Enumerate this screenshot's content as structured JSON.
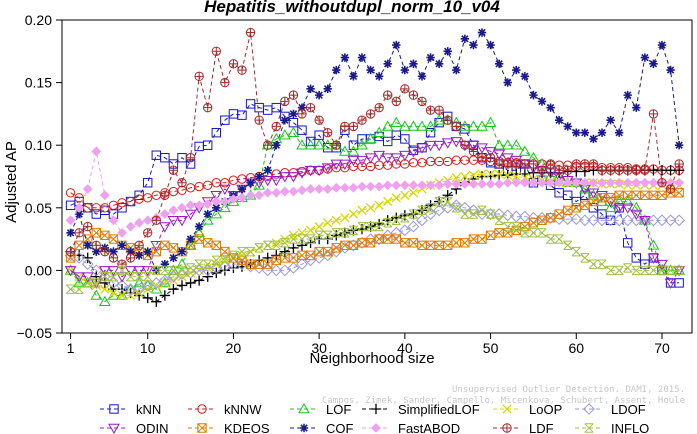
{
  "chart_data": {
    "type": "line",
    "title": "Hepatitis_withoutdupl_norm_10_v04",
    "xlabel": "Neighborhood size",
    "ylabel": "Adjusted AP",
    "xlim": [
      0,
      73.5
    ],
    "ylim": [
      -0.05,
      0.2
    ],
    "xticks": [
      1,
      10,
      20,
      30,
      40,
      50,
      60,
      70
    ],
    "yticks": [
      -0.05,
      0.0,
      0.05,
      0.1,
      0.15,
      0.2
    ],
    "ytick_labels": [
      "−0.05",
      "0.00",
      "0.05",
      "0.10",
      "0.15",
      "0.20"
    ],
    "grid": false,
    "legend_position": "bottom",
    "series": [
      {
        "name": "kNN",
        "color": "#1515c8",
        "marker": "square",
        "x_start": 1,
        "values": [
          0.052,
          0.055,
          0.05,
          0.045,
          0.048,
          0.045,
          0.05,
          0.055,
          0.06,
          0.07,
          0.092,
          0.09,
          0.085,
          0.09,
          0.085,
          0.099,
          0.1,
          0.11,
          0.12,
          0.125,
          0.124,
          0.133,
          0.13,
          0.128,
          0.13,
          0.123,
          0.118,
          0.112,
          0.103,
          0.108,
          0.098,
          0.098,
          0.112,
          0.1,
          0.105,
          0.105,
          0.107,
          0.103,
          0.108,
          0.105,
          0.096,
          0.098,
          0.11,
          0.118,
          0.123,
          0.115,
          0.113,
          0.1,
          0.09,
          0.086,
          0.085,
          0.08,
          0.08,
          0.085,
          0.07,
          0.072,
          0.068,
          0.062,
          0.06,
          0.055,
          0.06,
          0.05,
          0.045,
          0.04,
          0.05,
          0.022,
          0.01,
          0.005,
          0.01,
          0.0,
          -0.01,
          -0.01
        ]
      },
      {
        "name": "kNNW",
        "color": "#d81b1b",
        "marker": "circle",
        "x_start": 1,
        "values": [
          0.062,
          0.058,
          0.05,
          0.05,
          0.05,
          0.052,
          0.054,
          0.055,
          0.057,
          0.058,
          0.06,
          0.062,
          0.063,
          0.064,
          0.066,
          0.067,
          0.068,
          0.07,
          0.07,
          0.072,
          0.073,
          0.074,
          0.075,
          0.076,
          0.077,
          0.078,
          0.078,
          0.079,
          0.08,
          0.08,
          0.081,
          0.082,
          0.082,
          0.083,
          0.083,
          0.083,
          0.084,
          0.084,
          0.085,
          0.085,
          0.086,
          0.086,
          0.087,
          0.087,
          0.087,
          0.088,
          0.088,
          0.088,
          0.088,
          0.087,
          0.087,
          0.086,
          0.086,
          0.085,
          0.085,
          0.085,
          0.084,
          0.084,
          0.084,
          0.083,
          0.083,
          0.083,
          0.082,
          0.082,
          0.082,
          0.082,
          0.081,
          0.081,
          0.081,
          0.08,
          0.08,
          0.08
        ]
      },
      {
        "name": "LOF",
        "color": "#18c818",
        "marker": "triangle-up",
        "x_start": 1,
        "values": [
          0.0,
          -0.01,
          -0.01,
          -0.02,
          -0.025,
          -0.02,
          -0.02,
          -0.015,
          -0.01,
          -0.012,
          -0.015,
          -0.01,
          0.0,
          0.005,
          0.02,
          0.03,
          0.04,
          0.045,
          0.05,
          0.055,
          0.058,
          0.06,
          0.068,
          0.1,
          0.105,
          0.108,
          0.11,
          0.1,
          0.1,
          0.1,
          0.1,
          0.1,
          0.095,
          0.095,
          0.1,
          0.105,
          0.11,
          0.115,
          0.118,
          0.115,
          0.115,
          0.115,
          0.115,
          0.12,
          0.12,
          0.118,
          0.115,
          0.115,
          0.115,
          0.118,
          0.1,
          0.1,
          0.1,
          0.095,
          0.09,
          0.085,
          0.075,
          0.075,
          0.07,
          0.07,
          0.065,
          0.06,
          0.055,
          0.05,
          0.055,
          0.055,
          0.05,
          0.04,
          0.02,
          0.0,
          0.0,
          0.0
        ]
      },
      {
        "name": "SimplifiedLOF",
        "color": "#000000",
        "marker": "plus",
        "x_start": 1,
        "values": [
          0.015,
          0.012,
          0.01,
          -0.005,
          -0.01,
          -0.015,
          -0.015,
          -0.018,
          -0.02,
          -0.022,
          -0.025,
          -0.02,
          -0.015,
          -0.012,
          -0.01,
          -0.008,
          -0.005,
          -0.002,
          0.0,
          0.002,
          0.003,
          0.005,
          0.008,
          0.01,
          0.012,
          0.015,
          0.018,
          0.02,
          0.022,
          0.025,
          0.025,
          0.028,
          0.03,
          0.032,
          0.033,
          0.035,
          0.037,
          0.04,
          0.042,
          0.044,
          0.045,
          0.048,
          0.052,
          0.055,
          0.06,
          0.065,
          0.07,
          0.073,
          0.075,
          0.075,
          0.076,
          0.076,
          0.077,
          0.077,
          0.078,
          0.078,
          0.078,
          0.078,
          0.079,
          0.079,
          0.079,
          0.08,
          0.08,
          0.08,
          0.08,
          0.08,
          0.08,
          0.08,
          0.08,
          0.08,
          0.08,
          0.08
        ]
      },
      {
        "name": "LoOP",
        "color": "#d8d800",
        "marker": "x",
        "x_start": 1,
        "values": [
          0.0,
          -0.005,
          -0.01,
          -0.012,
          -0.015,
          -0.018,
          -0.02,
          -0.02,
          -0.018,
          -0.015,
          -0.012,
          -0.01,
          -0.008,
          -0.005,
          -0.002,
          0.0,
          0.002,
          0.005,
          0.008,
          0.01,
          0.012,
          0.015,
          0.018,
          0.02,
          0.022,
          0.025,
          0.028,
          0.03,
          0.032,
          0.035,
          0.038,
          0.04,
          0.042,
          0.045,
          0.048,
          0.05,
          0.052,
          0.055,
          0.058,
          0.06,
          0.062,
          0.065,
          0.068,
          0.07,
          0.072,
          0.074,
          0.075,
          0.076,
          0.077,
          0.077,
          0.077,
          0.076,
          0.075,
          0.074,
          0.073,
          0.072,
          0.071,
          0.07,
          0.07,
          0.07,
          0.07,
          0.07,
          0.069,
          0.069,
          0.069,
          0.068,
          0.068,
          0.068,
          0.068,
          0.068,
          0.068,
          0.068
        ]
      },
      {
        "name": "LDOF",
        "color": "#9b9bd8",
        "marker": "diamond",
        "x_start": 1,
        "values": [
          0.012,
          0.01,
          0.005,
          0.0,
          -0.005,
          -0.01,
          -0.012,
          -0.015,
          -0.015,
          -0.012,
          -0.01,
          -0.008,
          -0.005,
          -0.003,
          -0.002,
          0.0,
          0.0,
          0.002,
          0.003,
          0.005,
          0.005,
          0.003,
          0.002,
          0.0,
          0.0,
          0.0,
          0.002,
          0.005,
          0.008,
          0.01,
          0.012,
          0.015,
          0.018,
          0.02,
          0.022,
          0.025,
          0.025,
          0.028,
          0.03,
          0.032,
          0.035,
          0.04,
          0.045,
          0.048,
          0.05,
          0.052,
          0.05,
          0.048,
          0.045,
          0.045,
          0.045,
          0.044,
          0.043,
          0.043,
          0.042,
          0.042,
          0.042,
          0.041,
          0.041,
          0.041,
          0.04,
          0.04,
          0.04,
          0.04,
          0.04,
          0.04,
          0.04,
          0.04,
          0.04,
          0.04,
          0.04,
          0.04
        ]
      },
      {
        "name": "ODIN",
        "color": "#9a18c8",
        "marker": "triangle-down",
        "x_start": 1,
        "values": [
          0.0,
          -0.005,
          -0.005,
          -0.01,
          0.0,
          0.0,
          -0.005,
          0.0,
          0.0,
          0.0,
          0.02,
          0.035,
          0.04,
          0.04,
          0.045,
          0.05,
          0.055,
          0.06,
          0.065,
          0.06,
          0.065,
          0.07,
          0.07,
          0.072,
          0.072,
          0.075,
          0.075,
          0.078,
          0.08,
          0.08,
          0.082,
          0.085,
          0.085,
          0.088,
          0.088,
          0.09,
          0.092,
          0.09,
          0.09,
          0.092,
          0.095,
          0.098,
          0.1,
          0.1,
          0.102,
          0.103,
          0.1,
          0.1,
          0.098,
          0.095,
          0.093,
          0.09,
          0.088,
          0.085,
          0.082,
          0.08,
          0.078,
          0.075,
          0.072,
          0.07,
          0.065,
          0.062,
          0.06,
          0.055,
          0.05,
          0.05,
          0.045,
          0.04,
          0.01,
          0.005,
          -0.01,
          0.0
        ]
      },
      {
        "name": "KDEOS",
        "color": "#e07b00",
        "marker": "square-x",
        "x_start": 1,
        "values": [
          0.01,
          0.02,
          0.025,
          0.03,
          0.028,
          0.025,
          0.02,
          0.018,
          0.015,
          0.012,
          0.015,
          0.02,
          0.018,
          0.015,
          0.02,
          0.025,
          0.022,
          0.02,
          0.015,
          0.01,
          0.008,
          0.005,
          0.005,
          0.005,
          0.008,
          0.01,
          0.01,
          0.012,
          0.012,
          0.015,
          0.015,
          0.018,
          0.02,
          0.02,
          0.022,
          0.022,
          0.025,
          0.025,
          0.025,
          0.022,
          0.022,
          0.02,
          0.02,
          0.02,
          0.02,
          0.022,
          0.022,
          0.025,
          0.025,
          0.028,
          0.03,
          0.03,
          0.032,
          0.035,
          0.038,
          0.04,
          0.042,
          0.045,
          0.048,
          0.05,
          0.052,
          0.055,
          0.058,
          0.058,
          0.06,
          0.06,
          0.06,
          0.06,
          0.06,
          0.06,
          0.062,
          0.062
        ]
      },
      {
        "name": "COF",
        "color": "#1a1a8c",
        "marker": "star",
        "x_start": 1,
        "values": [
          0.03,
          0.045,
          0.02,
          0.015,
          0.018,
          0.015,
          0.02,
          0.015,
          0.012,
          0.015,
          0.0,
          0.005,
          0.01,
          0.015,
          0.025,
          0.035,
          0.045,
          0.05,
          0.055,
          0.06,
          0.065,
          0.07,
          0.075,
          0.08,
          0.1,
          0.12,
          0.125,
          0.13,
          0.145,
          0.14,
          0.145,
          0.16,
          0.17,
          0.155,
          0.17,
          0.16,
          0.155,
          0.165,
          0.18,
          0.16,
          0.165,
          0.155,
          0.17,
          0.165,
          0.175,
          0.16,
          0.185,
          0.18,
          0.19,
          0.18,
          0.165,
          0.15,
          0.16,
          0.155,
          0.14,
          0.135,
          0.13,
          0.12,
          0.115,
          0.11,
          0.11,
          0.105,
          0.11,
          0.12,
          0.11,
          0.14,
          0.13,
          0.17,
          0.165,
          0.18,
          0.16,
          0.1
        ]
      },
      {
        "name": "FastABOD",
        "color": "#f0a0f0",
        "marker": "diamond-small",
        "x_start": 1,
        "values": [
          0.04,
          0.05,
          0.065,
          0.095,
          0.06,
          0.04,
          0.03,
          0.035,
          0.038,
          0.04,
          0.042,
          0.045,
          0.048,
          0.05,
          0.052,
          0.052,
          0.053,
          0.055,
          0.055,
          0.057,
          0.058,
          0.06,
          0.06,
          0.062,
          0.062,
          0.063,
          0.063,
          0.064,
          0.065,
          0.065,
          0.065,
          0.066,
          0.066,
          0.066,
          0.067,
          0.067,
          0.067,
          0.068,
          0.068,
          0.068,
          0.068,
          0.068,
          0.068,
          0.068,
          0.069,
          0.069,
          0.069,
          0.069,
          0.069,
          0.069,
          0.069,
          0.07,
          0.07,
          0.07,
          0.07,
          0.07,
          0.07,
          0.07,
          0.07,
          0.07,
          0.07,
          0.07,
          0.07,
          0.07,
          0.07,
          0.07,
          0.07,
          0.07,
          0.07,
          0.07,
          0.07,
          0.07
        ]
      },
      {
        "name": "LDF",
        "color": "#a52a2a",
        "marker": "circle-plus",
        "x_start": 1,
        "values": [
          0.015,
          0.03,
          0.035,
          0.02,
          0.015,
          0.01,
          0.005,
          0.01,
          0.02,
          0.03,
          0.04,
          0.06,
          0.08,
          0.07,
          0.09,
          0.155,
          0.13,
          0.175,
          0.15,
          0.165,
          0.16,
          0.19,
          0.12,
          0.1,
          0.115,
          0.135,
          0.14,
          0.125,
          0.13,
          0.12,
          0.11,
          0.1,
          0.115,
          0.115,
          0.12,
          0.125,
          0.13,
          0.14,
          0.135,
          0.145,
          0.14,
          0.135,
          0.128,
          0.128,
          0.12,
          0.115,
          0.1,
          0.095,
          0.09,
          0.09,
          0.085,
          0.085,
          0.085,
          0.085,
          0.085,
          0.08,
          0.085,
          0.08,
          0.08,
          0.085,
          0.085,
          0.085,
          0.08,
          0.08,
          0.08,
          0.08,
          0.08,
          0.08,
          0.125,
          0.07,
          0.065,
          0.085
        ]
      },
      {
        "name": "INFLO",
        "color": "#a0c040",
        "marker": "asterisk-box",
        "x_start": 1,
        "values": [
          -0.015,
          -0.015,
          -0.01,
          -0.01,
          -0.005,
          -0.005,
          0.0,
          -0.005,
          -0.005,
          -0.005,
          0.0,
          0.0,
          0.0,
          0.0,
          0.002,
          0.005,
          0.005,
          0.008,
          0.01,
          0.012,
          0.015,
          0.015,
          0.018,
          0.02,
          0.02,
          0.022,
          0.025,
          0.025,
          0.025,
          0.028,
          0.028,
          0.03,
          0.03,
          0.032,
          0.035,
          0.035,
          0.035,
          0.038,
          0.04,
          0.042,
          0.045,
          0.048,
          0.05,
          0.055,
          0.055,
          0.05,
          0.045,
          0.045,
          0.048,
          0.045,
          0.04,
          0.035,
          0.035,
          0.03,
          0.03,
          0.03,
          0.025,
          0.025,
          0.02,
          0.015,
          0.01,
          0.005,
          0.005,
          0.0,
          0.0,
          0.002,
          0.0,
          0.0,
          0.0,
          0.0,
          0.0,
          0.0
        ]
      }
    ],
    "credit_line_1": "Unsupervised Outlier Detection. DAMI, 2015.",
    "credit_line_2": "Campos, Zimek, Sander, Campello, Micenkova, Schubert, Assent, Houle"
  }
}
